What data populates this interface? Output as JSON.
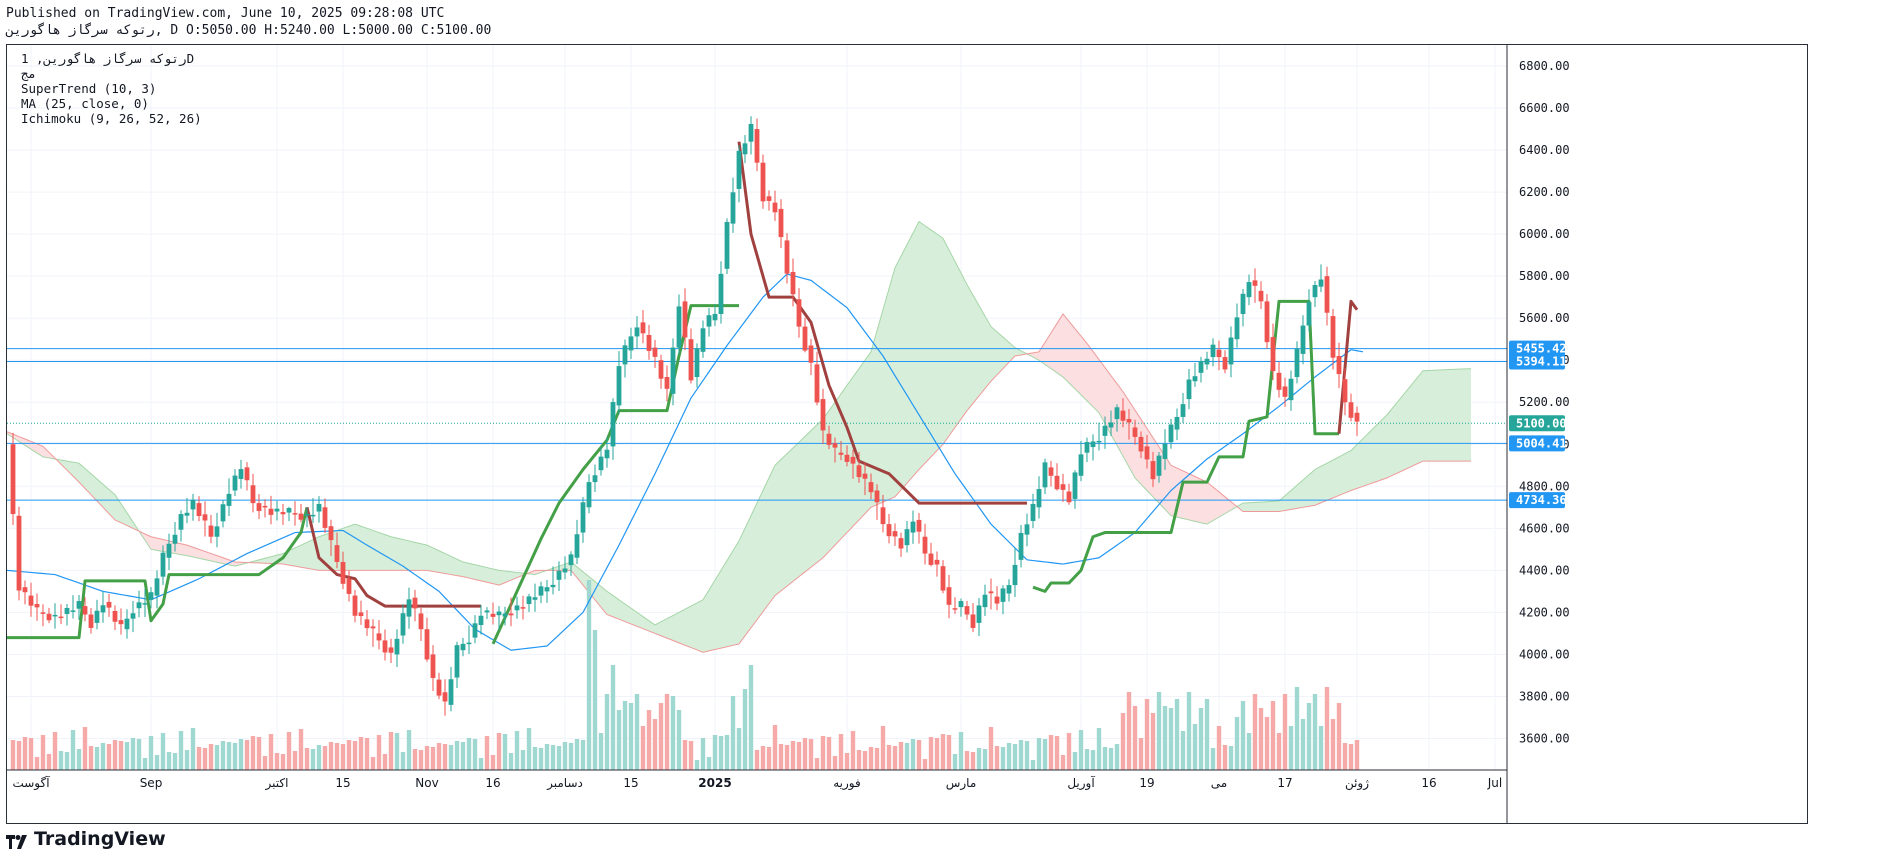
{
  "header": {
    "published": "Published on TradingView.com, June 10, 2025 09:28:08 UTC",
    "ohlc_line": "رتوکه سرگاز هاگورين, D O:5050.00 H:5240.00 L:5000.00 C:5100.00"
  },
  "legend": {
    "symbol_line": "رتوکه سرگاز هاگورين, 1D",
    "exchange": "مج",
    "supertrend": "SuperTrend (10, 3)",
    "ma": "MA (25, close, 0)",
    "ichimoku": "Ichimoku (9, 26, 52, 26)"
  },
  "footer": {
    "brand": "TradingView"
  },
  "chart_data": {
    "type": "candlestick",
    "title": "رتوکه سرگاز هاگورين, 1D",
    "y_axis": {
      "range": [
        3450,
        6900
      ],
      "ticks": [
        3600,
        3800,
        4000,
        4200,
        4400,
        4600,
        4800,
        5000,
        5200,
        5400,
        5600,
        5800,
        6000,
        6200,
        6400,
        6600,
        6800
      ],
      "tick_labels": [
        "3600.00",
        "3800.00",
        "4000.00",
        "4200.00",
        "4400.00",
        "4600.00",
        "4800.00",
        "5000.00",
        "5200.00",
        "5400.00",
        "5600.00",
        "5800.00",
        "6000.00",
        "6200.00",
        "6400.00",
        "6600.00",
        "6800.00"
      ]
    },
    "x_axis": {
      "bar_range": [
        0,
        250
      ],
      "ticks": [
        {
          "bar": 4,
          "label": "آگوست"
        },
        {
          "bar": 24,
          "label": "Sep"
        },
        {
          "bar": 45,
          "label": "اکتبر"
        },
        {
          "bar": 56,
          "label": "15"
        },
        {
          "bar": 70,
          "label": "Nov"
        },
        {
          "bar": 81,
          "label": "16"
        },
        {
          "bar": 93,
          "label": "دسامبر"
        },
        {
          "bar": 104,
          "label": "15"
        },
        {
          "bar": 118,
          "label": "2025"
        },
        {
          "bar": 140,
          "label": "فوریه"
        },
        {
          "bar": 159,
          "label": "مارس"
        },
        {
          "bar": 179,
          "label": "آوریل"
        },
        {
          "bar": 190,
          "label": "19"
        },
        {
          "bar": 202,
          "label": "می"
        },
        {
          "bar": 213,
          "label": "17"
        },
        {
          "bar": 225,
          "label": "ژوئن"
        },
        {
          "bar": 237,
          "label": "16"
        },
        {
          "bar": 248,
          "label": "Jul"
        }
      ]
    },
    "price_badges": [
      {
        "value": 5455.42,
        "label": "5455.42",
        "color": "#2196f3"
      },
      {
        "value": 5394.11,
        "label": "5394.11",
        "color": "#2196f3"
      },
      {
        "value": 5100.0,
        "label": "5100.00",
        "color": "#26a69a"
      },
      {
        "value": 5004.41,
        "label": "5004.41",
        "color": "#2196f3"
      },
      {
        "value": 4734.36,
        "label": "4734.36",
        "color": "#2196f3"
      }
    ],
    "horizontal_lines": [
      5455.42,
      5394.11,
      5004.41,
      4734.36
    ],
    "last_price": 5100,
    "anchors": [
      [
        0,
        5000
      ],
      [
        2,
        4320
      ],
      [
        5,
        4200
      ],
      [
        8,
        4180
      ],
      [
        12,
        4230
      ],
      [
        14,
        4150
      ],
      [
        16,
        4250
      ],
      [
        19,
        4120
      ],
      [
        21,
        4220
      ],
      [
        24,
        4280
      ],
      [
        26,
        4460
      ],
      [
        29,
        4660
      ],
      [
        31,
        4720
      ],
      [
        34,
        4560
      ],
      [
        37,
        4780
      ],
      [
        39,
        4890
      ],
      [
        41,
        4720
      ],
      [
        44,
        4680
      ],
      [
        48,
        4670
      ],
      [
        50,
        4660
      ],
      [
        52,
        4700
      ],
      [
        54,
        4520
      ],
      [
        56,
        4360
      ],
      [
        58,
        4200
      ],
      [
        61,
        4100
      ],
      [
        64,
        4000
      ],
      [
        67,
        4270
      ],
      [
        69,
        4120
      ],
      [
        71,
        3880
      ],
      [
        73,
        3760
      ],
      [
        75,
        4020
      ],
      [
        77,
        4080
      ],
      [
        79,
        4200
      ],
      [
        82,
        4180
      ],
      [
        86,
        4240
      ],
      [
        90,
        4320
      ],
      [
        94,
        4460
      ],
      [
        97,
        4820
      ],
      [
        100,
        4990
      ],
      [
        102,
        5380
      ],
      [
        105,
        5580
      ],
      [
        108,
        5400
      ],
      [
        110,
        5240
      ],
      [
        112,
        5680
      ],
      [
        114,
        5320
      ],
      [
        116,
        5560
      ],
      [
        118,
        5620
      ],
      [
        120,
        6050
      ],
      [
        122,
        6380
      ],
      [
        124,
        6500
      ],
      [
        126,
        6180
      ],
      [
        128,
        6120
      ],
      [
        130,
        5820
      ],
      [
        132,
        5560
      ],
      [
        134,
        5380
      ],
      [
        136,
        5050
      ],
      [
        138,
        4960
      ],
      [
        140,
        4940
      ],
      [
        142,
        4860
      ],
      [
        144,
        4780
      ],
      [
        146,
        4620
      ],
      [
        149,
        4520
      ],
      [
        151,
        4640
      ],
      [
        153,
        4480
      ],
      [
        155,
        4420
      ],
      [
        157,
        4220
      ],
      [
        159,
        4230
      ],
      [
        161,
        4150
      ],
      [
        163,
        4300
      ],
      [
        165,
        4250
      ],
      [
        167,
        4330
      ],
      [
        169,
        4570
      ],
      [
        171,
        4700
      ],
      [
        173,
        4890
      ],
      [
        175,
        4810
      ],
      [
        177,
        4740
      ],
      [
        179,
        4960
      ],
      [
        182,
        5040
      ],
      [
        185,
        5160
      ],
      [
        187,
        5080
      ],
      [
        189,
        4990
      ],
      [
        191,
        4850
      ],
      [
        193,
        5010
      ],
      [
        195,
        5130
      ],
      [
        197,
        5300
      ],
      [
        199,
        5380
      ],
      [
        201,
        5450
      ],
      [
        203,
        5380
      ],
      [
        205,
        5620
      ],
      [
        207,
        5780
      ],
      [
        209,
        5680
      ],
      [
        211,
        5340
      ],
      [
        213,
        5210
      ],
      [
        215,
        5430
      ],
      [
        217,
        5700
      ],
      [
        219,
        5800
      ],
      [
        221,
        5420
      ],
      [
        223,
        5200
      ],
      [
        225,
        5100
      ]
    ],
    "supertrend_anchors": [
      [
        0,
        4080,
        "up"
      ],
      [
        12,
        4080,
        "up"
      ],
      [
        13,
        4350,
        "up"
      ],
      [
        23,
        4350,
        "up"
      ],
      [
        24,
        4160,
        "up"
      ],
      [
        26,
        4240,
        "up"
      ],
      [
        27,
        4380,
        "up"
      ],
      [
        42,
        4380,
        "up"
      ],
      [
        46,
        4460,
        "up"
      ],
      [
        49,
        4580,
        "up"
      ],
      [
        50,
        4700,
        "up"
      ],
      [
        50,
        4700,
        "down"
      ],
      [
        52,
        4460,
        "down"
      ],
      [
        55,
        4380,
        "down"
      ],
      [
        58,
        4360,
        "down"
      ],
      [
        60,
        4280,
        "down"
      ],
      [
        63,
        4230,
        "down"
      ],
      [
        79,
        4230,
        "down"
      ],
      [
        81,
        4050,
        "up"
      ],
      [
        85,
        4300,
        "up"
      ],
      [
        89,
        4550,
        "up"
      ],
      [
        92,
        4720,
        "up"
      ],
      [
        96,
        4880,
        "up"
      ],
      [
        100,
        5020,
        "up"
      ],
      [
        102,
        5160,
        "up"
      ],
      [
        110,
        5160,
        "up"
      ],
      [
        112,
        5420,
        "up"
      ],
      [
        114,
        5660,
        "up"
      ],
      [
        122,
        5660,
        "up"
      ],
      [
        122,
        6440,
        "down"
      ],
      [
        124,
        6000,
        "down"
      ],
      [
        127,
        5700,
        "down"
      ],
      [
        131,
        5700,
        "down"
      ],
      [
        134,
        5580,
        "down"
      ],
      [
        137,
        5280,
        "down"
      ],
      [
        140,
        5080,
        "down"
      ],
      [
        142,
        4920,
        "down"
      ],
      [
        147,
        4860,
        "down"
      ],
      [
        152,
        4720,
        "down"
      ],
      [
        164,
        4720,
        "down"
      ],
      [
        170,
        4720,
        "down"
      ],
      [
        171,
        4320,
        "up"
      ],
      [
        173,
        4300,
        "up"
      ],
      [
        174,
        4340,
        "up"
      ],
      [
        177,
        4340,
        "up"
      ],
      [
        179,
        4400,
        "up"
      ],
      [
        181,
        4560,
        "up"
      ],
      [
        183,
        4580,
        "up"
      ],
      [
        194,
        4580,
        "up"
      ],
      [
        196,
        4820,
        "up"
      ],
      [
        200,
        4820,
        "up"
      ],
      [
        202,
        4940,
        "up"
      ],
      [
        206,
        4940,
        "up"
      ],
      [
        207,
        5110,
        "up"
      ],
      [
        210,
        5130,
        "up"
      ],
      [
        212,
        5680,
        "up"
      ],
      [
        217,
        5680,
        "up"
      ],
      [
        218,
        5050,
        "up"
      ],
      [
        222,
        5050,
        "up"
      ],
      [
        222,
        5050,
        "down"
      ],
      [
        224,
        5680,
        "down"
      ],
      [
        225,
        5640,
        "down"
      ]
    ],
    "ma_anchors": [
      [
        0,
        4400
      ],
      [
        8,
        4380
      ],
      [
        16,
        4300
      ],
      [
        24,
        4260
      ],
      [
        32,
        4360
      ],
      [
        40,
        4480
      ],
      [
        48,
        4580
      ],
      [
        56,
        4590
      ],
      [
        60,
        4520
      ],
      [
        66,
        4420
      ],
      [
        72,
        4300
      ],
      [
        78,
        4120
      ],
      [
        84,
        4020
      ],
      [
        90,
        4040
      ],
      [
        96,
        4200
      ],
      [
        102,
        4520
      ],
      [
        108,
        4860
      ],
      [
        114,
        5220
      ],
      [
        120,
        5470
      ],
      [
        126,
        5700
      ],
      [
        130,
        5810
      ],
      [
        134,
        5780
      ],
      [
        140,
        5650
      ],
      [
        146,
        5420
      ],
      [
        152,
        5140
      ],
      [
        158,
        4860
      ],
      [
        164,
        4620
      ],
      [
        170,
        4450
      ],
      [
        176,
        4430
      ],
      [
        182,
        4460
      ],
      [
        188,
        4580
      ],
      [
        194,
        4780
      ],
      [
        200,
        4930
      ],
      [
        206,
        5050
      ],
      [
        212,
        5180
      ],
      [
        218,
        5320
      ],
      [
        224,
        5450
      ],
      [
        226,
        5440
      ]
    ],
    "cloud_a_anchors": [
      [
        0,
        5050
      ],
      [
        6,
        4940
      ],
      [
        12,
        4910
      ],
      [
        18,
        4760
      ],
      [
        24,
        4500
      ],
      [
        30,
        4470
      ],
      [
        38,
        4420
      ],
      [
        46,
        4480
      ],
      [
        52,
        4560
      ],
      [
        58,
        4620
      ],
      [
        64,
        4560
      ],
      [
        70,
        4520
      ],
      [
        76,
        4440
      ],
      [
        82,
        4400
      ],
      [
        88,
        4380
      ],
      [
        94,
        4440
      ],
      [
        100,
        4300
      ],
      [
        108,
        4140
      ],
      [
        116,
        4260
      ],
      [
        122,
        4540
      ],
      [
        128,
        4900
      ],
      [
        136,
        5120
      ],
      [
        144,
        5440
      ],
      [
        148,
        5840
      ],
      [
        152,
        6060
      ],
      [
        156,
        5980
      ],
      [
        160,
        5760
      ],
      [
        164,
        5560
      ],
      [
        168,
        5460
      ],
      [
        172,
        5400
      ],
      [
        176,
        5320
      ],
      [
        182,
        5150
      ],
      [
        188,
        4840
      ],
      [
        194,
        4660
      ],
      [
        200,
        4620
      ],
      [
        206,
        4720
      ],
      [
        212,
        4730
      ],
      [
        218,
        4880
      ],
      [
        224,
        4970
      ],
      [
        230,
        5140
      ],
      [
        236,
        5350
      ],
      [
        244,
        5360
      ]
    ],
    "cloud_b_anchors": [
      [
        0,
        5060
      ],
      [
        6,
        4990
      ],
      [
        12,
        4820
      ],
      [
        18,
        4640
      ],
      [
        24,
        4560
      ],
      [
        30,
        4520
      ],
      [
        38,
        4440
      ],
      [
        46,
        4430
      ],
      [
        52,
        4400
      ],
      [
        58,
        4400
      ],
      [
        64,
        4400
      ],
      [
        70,
        4400
      ],
      [
        76,
        4370
      ],
      [
        82,
        4330
      ],
      [
        88,
        4400
      ],
      [
        94,
        4400
      ],
      [
        100,
        4190
      ],
      [
        108,
        4100
      ],
      [
        116,
        4010
      ],
      [
        122,
        4050
      ],
      [
        128,
        4280
      ],
      [
        136,
        4460
      ],
      [
        144,
        4700
      ],
      [
        148,
        4750
      ],
      [
        152,
        4880
      ],
      [
        156,
        5000
      ],
      [
        160,
        5160
      ],
      [
        164,
        5300
      ],
      [
        168,
        5420
      ],
      [
        172,
        5440
      ],
      [
        176,
        5620
      ],
      [
        180,
        5480
      ],
      [
        186,
        5250
      ],
      [
        194,
        4900
      ],
      [
        200,
        4820
      ],
      [
        206,
        4680
      ],
      [
        212,
        4680
      ],
      [
        218,
        4710
      ],
      [
        224,
        4780
      ],
      [
        230,
        4840
      ],
      [
        236,
        4920
      ],
      [
        244,
        4920
      ]
    ],
    "volume_bars": "decorative volume histogram along the bottom (green = up day, red = down day)"
  },
  "colors": {
    "up": "#26a69a",
    "down": "#ef5350",
    "supertrend_up": "#43a047",
    "supertrend_down": "#a0413f",
    "ma": "#2196f3",
    "cloud_green_fill": "#d7efda",
    "cloud_red_fill": "#fcdfe0",
    "hline": "#2196f3",
    "grid": "#f0f3fa"
  }
}
